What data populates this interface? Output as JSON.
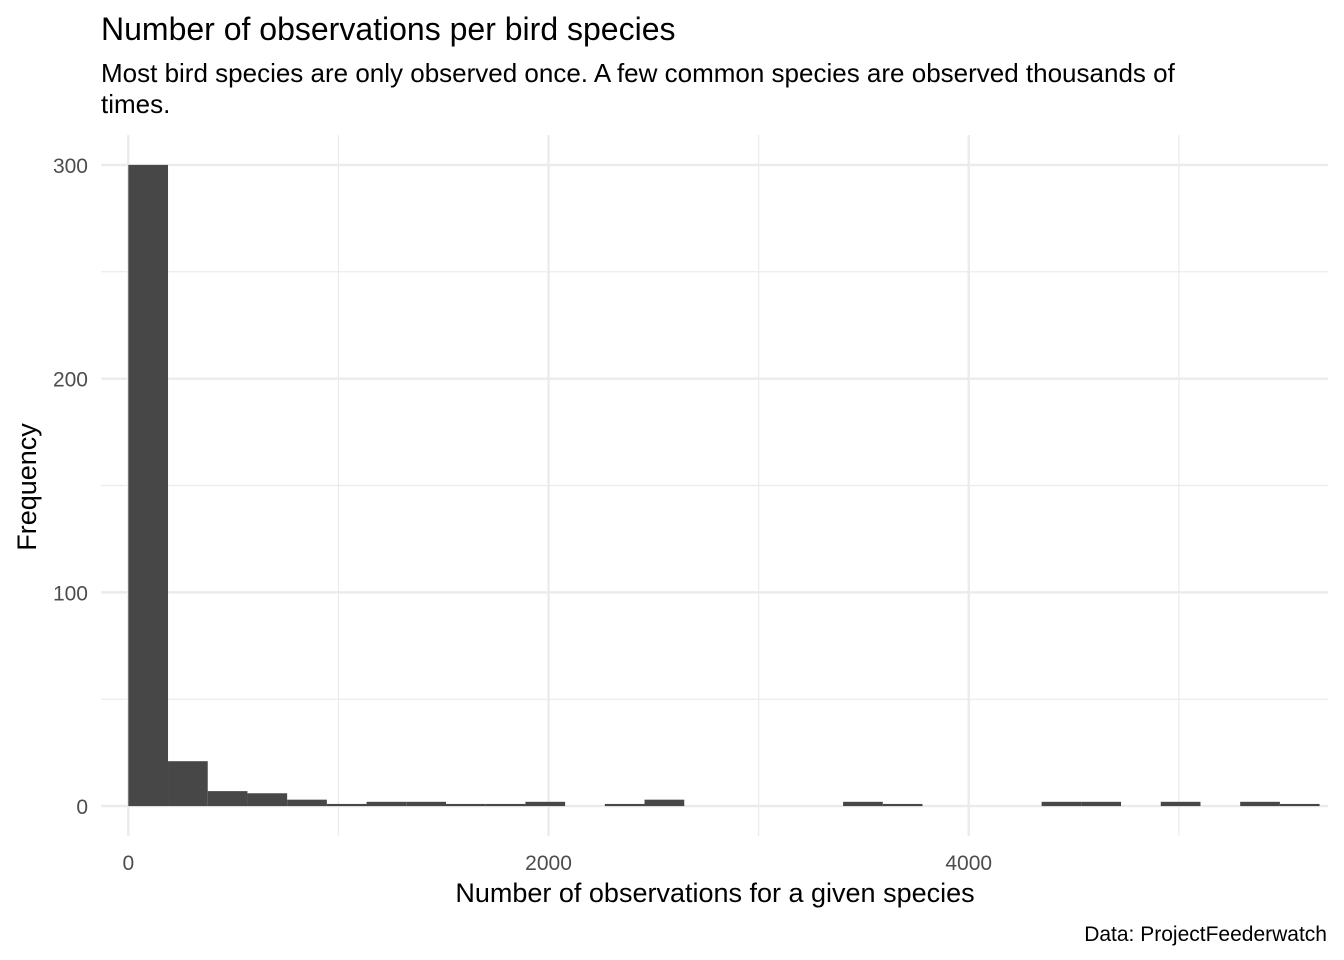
{
  "chart_data": {
    "type": "bar",
    "title": "Number of observations per bird species",
    "subtitle": "Most bird species are only observed once. A few common species are observed thousands of times.",
    "xlabel": "Number of observations for a given species",
    "ylabel": "Frequency",
    "caption": "Data: ProjectFeederwatch",
    "xlim": [
      -130,
      5710
    ],
    "ylim": [
      -14,
      314
    ],
    "x_ticks": [
      0,
      2000,
      4000
    ],
    "x_tick_labels": [
      "0",
      "2000",
      "4000"
    ],
    "y_ticks": [
      0,
      100,
      200,
      300
    ],
    "y_tick_labels": [
      "0",
      "100",
      "200",
      "300"
    ],
    "x_minor_gridlines": [
      1000,
      3000,
      5000
    ],
    "y_minor_gridlines": [
      50,
      150,
      250
    ],
    "grid": true,
    "bin_width": 189,
    "bins_x_start": 0,
    "values": [
      300,
      21,
      7,
      6,
      3,
      1,
      2,
      2,
      1,
      1,
      2,
      0,
      1,
      3,
      0,
      0,
      0,
      0,
      2,
      1,
      0,
      0,
      0,
      2,
      2,
      0,
      2,
      0,
      2,
      1
    ],
    "bar_color": "#474747",
    "grid_color": "#ebebeb"
  }
}
